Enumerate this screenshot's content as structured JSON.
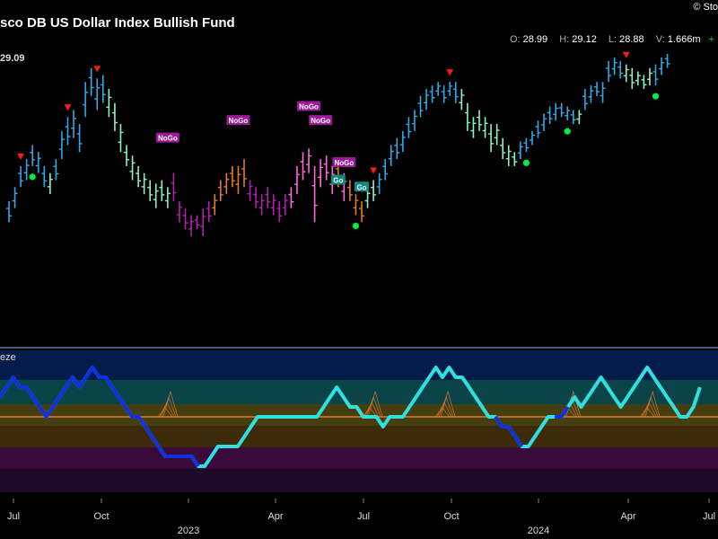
{
  "header": {
    "title": "sco DB US Dollar Index Bullish Fund",
    "copyright": "© Sto",
    "open_label": "O:",
    "open": "28.99",
    "high_label": "H:",
    "high": "29.12",
    "low_label": "L:",
    "low": "28.88",
    "vol_label": "V:",
    "vol": "1.666m",
    "change": "+"
  },
  "colors": {
    "strong_bull": "#2fa8e6",
    "weak_bull": "#8ff0c0",
    "weak_bear": "#e07a2a",
    "strong_bear": "#b21fb0",
    "neutral_bear": "#ff69d8",
    "signal_up": "#00ee44",
    "signal_down": "#ff1a1a",
    "oscillator_hi": "#2ee0e0",
    "oscillator_lo": "#1030e0",
    "zero_line": "#e07a2a"
  },
  "chart_data": [
    {
      "type": "bar",
      "price_label": "29.09",
      "x_ticks": [
        "Jul",
        "Oct",
        "2023",
        "Apr",
        "Jul",
        "Oct",
        "2024",
        "Apr",
        "Jul"
      ],
      "ylim": [
        25.3,
        29.4
      ],
      "bars": [
        {
          "x": 1,
          "lo": 27.0,
          "hi": 27.3,
          "c": "strong_bull"
        },
        {
          "x": 2,
          "lo": 27.2,
          "hi": 27.5,
          "c": "strong_bull"
        },
        {
          "x": 3,
          "lo": 27.5,
          "hi": 27.8,
          "c": "strong_bull"
        },
        {
          "x": 4,
          "lo": 27.6,
          "hi": 27.9,
          "c": "strong_bull"
        },
        {
          "x": 5,
          "lo": 27.8,
          "hi": 28.1,
          "c": "strong_bull"
        },
        {
          "x": 6,
          "lo": 27.7,
          "hi": 28.0,
          "c": "strong_bull"
        },
        {
          "x": 7,
          "lo": 27.5,
          "hi": 27.8,
          "c": "strong_bull"
        },
        {
          "x": 8,
          "lo": 27.4,
          "hi": 27.7,
          "c": "weak_bull"
        },
        {
          "x": 9,
          "lo": 27.6,
          "hi": 27.9,
          "c": "strong_bull"
        },
        {
          "x": 10,
          "lo": 27.9,
          "hi": 28.3,
          "c": "strong_bull"
        },
        {
          "x": 11,
          "lo": 28.1,
          "hi": 28.5,
          "c": "strong_bull"
        },
        {
          "x": 12,
          "lo": 28.2,
          "hi": 28.6,
          "c": "strong_bull"
        },
        {
          "x": 13,
          "lo": 28.0,
          "hi": 28.4,
          "c": "strong_bull"
        },
        {
          "x": 14,
          "lo": 28.5,
          "hi": 29.0,
          "c": "strong_bull"
        },
        {
          "x": 15,
          "lo": 28.8,
          "hi": 29.2,
          "c": "strong_bull"
        },
        {
          "x": 16,
          "lo": 28.6,
          "hi": 29.05,
          "c": "strong_bull"
        },
        {
          "x": 17,
          "lo": 28.7,
          "hi": 29.1,
          "c": "strong_bull"
        },
        {
          "x": 18,
          "lo": 28.5,
          "hi": 28.9,
          "c": "weak_bull"
        },
        {
          "x": 19,
          "lo": 28.3,
          "hi": 28.7,
          "c": "weak_bull"
        },
        {
          "x": 20,
          "lo": 28.0,
          "hi": 28.4,
          "c": "weak_bull"
        },
        {
          "x": 21,
          "lo": 27.8,
          "hi": 28.1,
          "c": "weak_bull"
        },
        {
          "x": 22,
          "lo": 27.6,
          "hi": 27.95,
          "c": "weak_bull"
        },
        {
          "x": 23,
          "lo": 27.5,
          "hi": 27.8,
          "c": "weak_bull"
        },
        {
          "x": 24,
          "lo": 27.4,
          "hi": 27.7,
          "c": "weak_bull"
        },
        {
          "x": 25,
          "lo": 27.3,
          "hi": 27.6,
          "c": "weak_bull"
        },
        {
          "x": 26,
          "lo": 27.2,
          "hi": 27.55,
          "c": "weak_bull"
        },
        {
          "x": 27,
          "lo": 27.3,
          "hi": 27.6,
          "c": "weak_bull"
        },
        {
          "x": 28,
          "lo": 27.2,
          "hi": 27.5,
          "c": "weak_bull"
        },
        {
          "x": 29,
          "lo": 27.3,
          "hi": 27.7,
          "c": "strong_bear"
        },
        {
          "x": 30,
          "lo": 27.0,
          "hi": 27.3,
          "c": "strong_bear"
        },
        {
          "x": 31,
          "lo": 26.9,
          "hi": 27.2,
          "c": "strong_bear"
        },
        {
          "x": 32,
          "lo": 26.8,
          "hi": 27.1,
          "c": "strong_bear"
        },
        {
          "x": 33,
          "lo": 26.9,
          "hi": 27.1,
          "c": "strong_bear"
        },
        {
          "x": 34,
          "lo": 26.8,
          "hi": 27.2,
          "c": "strong_bear"
        },
        {
          "x": 35,
          "lo": 27.0,
          "hi": 27.3,
          "c": "strong_bear"
        },
        {
          "x": 36,
          "lo": 27.1,
          "hi": 27.4,
          "c": "weak_bear"
        },
        {
          "x": 37,
          "lo": 27.3,
          "hi": 27.6,
          "c": "weak_bear"
        },
        {
          "x": 38,
          "lo": 27.4,
          "hi": 27.7,
          "c": "weak_bear"
        },
        {
          "x": 39,
          "lo": 27.5,
          "hi": 27.8,
          "c": "weak_bear"
        },
        {
          "x": 40,
          "lo": 27.4,
          "hi": 27.8,
          "c": "weak_bear"
        },
        {
          "x": 41,
          "lo": 27.5,
          "hi": 27.9,
          "c": "weak_bear"
        },
        {
          "x": 42,
          "lo": 27.3,
          "hi": 27.6,
          "c": "strong_bear"
        },
        {
          "x": 43,
          "lo": 27.2,
          "hi": 27.5,
          "c": "strong_bear"
        },
        {
          "x": 44,
          "lo": 27.1,
          "hi": 27.4,
          "c": "strong_bear"
        },
        {
          "x": 45,
          "lo": 27.2,
          "hi": 27.5,
          "c": "strong_bear"
        },
        {
          "x": 46,
          "lo": 27.1,
          "hi": 27.4,
          "c": "strong_bear"
        },
        {
          "x": 47,
          "lo": 27.0,
          "hi": 27.3,
          "c": "strong_bear"
        },
        {
          "x": 48,
          "lo": 27.1,
          "hi": 27.4,
          "c": "strong_bear"
        },
        {
          "x": 49,
          "lo": 27.2,
          "hi": 27.5,
          "c": "neutral_bear"
        },
        {
          "x": 50,
          "lo": 27.4,
          "hi": 27.8,
          "c": "neutral_bear"
        },
        {
          "x": 51,
          "lo": 27.6,
          "hi": 28.0,
          "c": "neutral_bear"
        },
        {
          "x": 52,
          "lo": 27.7,
          "hi": 28.05,
          "c": "neutral_bear"
        },
        {
          "x": 53,
          "lo": 27.0,
          "hi": 27.8,
          "c": "neutral_bear"
        },
        {
          "x": 54,
          "lo": 27.5,
          "hi": 27.9,
          "c": "neutral_bear"
        },
        {
          "x": 55,
          "lo": 27.6,
          "hi": 27.95,
          "c": "neutral_bear"
        },
        {
          "x": 56,
          "lo": 27.4,
          "hi": 27.8,
          "c": "neutral_bear"
        },
        {
          "x": 57,
          "lo": 27.5,
          "hi": 27.9,
          "c": "weak_bear"
        },
        {
          "x": 58,
          "lo": 27.3,
          "hi": 27.7,
          "c": "neutral_bear"
        },
        {
          "x": 59,
          "lo": 27.3,
          "hi": 27.6,
          "c": "weak_bear"
        },
        {
          "x": 60,
          "lo": 27.1,
          "hi": 27.4,
          "c": "weak_bear"
        },
        {
          "x": 61,
          "lo": 27.0,
          "hi": 27.3,
          "c": "weak_bear"
        },
        {
          "x": 62,
          "lo": 27.2,
          "hi": 27.5,
          "c": "weak_bull"
        },
        {
          "x": 63,
          "lo": 27.3,
          "hi": 27.6,
          "c": "weak_bull"
        },
        {
          "x": 64,
          "lo": 27.4,
          "hi": 27.7,
          "c": "strong_bull"
        },
        {
          "x": 65,
          "lo": 27.6,
          "hi": 27.9,
          "c": "strong_bull"
        },
        {
          "x": 66,
          "lo": 27.8,
          "hi": 28.1,
          "c": "strong_bull"
        },
        {
          "x": 67,
          "lo": 27.9,
          "hi": 28.2,
          "c": "strong_bull"
        },
        {
          "x": 68,
          "lo": 28.0,
          "hi": 28.3,
          "c": "strong_bull"
        },
        {
          "x": 69,
          "lo": 28.2,
          "hi": 28.5,
          "c": "strong_bull"
        },
        {
          "x": 70,
          "lo": 28.3,
          "hi": 28.6,
          "c": "strong_bull"
        },
        {
          "x": 71,
          "lo": 28.5,
          "hi": 28.8,
          "c": "strong_bull"
        },
        {
          "x": 72,
          "lo": 28.6,
          "hi": 28.9,
          "c": "strong_bull"
        },
        {
          "x": 73,
          "lo": 28.7,
          "hi": 28.95,
          "c": "strong_bull"
        },
        {
          "x": 74,
          "lo": 28.8,
          "hi": 29.0,
          "c": "strong_bull"
        },
        {
          "x": 75,
          "lo": 28.7,
          "hi": 28.95,
          "c": "strong_bull"
        },
        {
          "x": 76,
          "lo": 28.8,
          "hi": 29.0,
          "c": "strong_bull"
        },
        {
          "x": 77,
          "lo": 28.7,
          "hi": 29.0,
          "c": "strong_bull"
        },
        {
          "x": 78,
          "lo": 28.6,
          "hi": 28.9,
          "c": "weak_bull"
        },
        {
          "x": 79,
          "lo": 28.3,
          "hi": 28.7,
          "c": "weak_bull"
        },
        {
          "x": 80,
          "lo": 28.2,
          "hi": 28.5,
          "c": "weak_bull"
        },
        {
          "x": 81,
          "lo": 28.3,
          "hi": 28.6,
          "c": "weak_bull"
        },
        {
          "x": 82,
          "lo": 28.2,
          "hi": 28.5,
          "c": "weak_bull"
        },
        {
          "x": 83,
          "lo": 28.0,
          "hi": 28.4,
          "c": "weak_bull"
        },
        {
          "x": 84,
          "lo": 28.1,
          "hi": 28.4,
          "c": "weak_bull"
        },
        {
          "x": 85,
          "lo": 27.9,
          "hi": 28.2,
          "c": "weak_bull"
        },
        {
          "x": 86,
          "lo": 27.8,
          "hi": 28.1,
          "c": "weak_bull"
        },
        {
          "x": 87,
          "lo": 27.8,
          "hi": 28.0,
          "c": "weak_bull"
        },
        {
          "x": 88,
          "lo": 27.9,
          "hi": 28.15,
          "c": "strong_bull"
        },
        {
          "x": 89,
          "lo": 28.0,
          "hi": 28.2,
          "c": "strong_bull"
        },
        {
          "x": 90,
          "lo": 28.1,
          "hi": 28.3,
          "c": "strong_bull"
        },
        {
          "x": 91,
          "lo": 28.2,
          "hi": 28.45,
          "c": "strong_bull"
        },
        {
          "x": 92,
          "lo": 28.3,
          "hi": 28.55,
          "c": "strong_bull"
        },
        {
          "x": 93,
          "lo": 28.4,
          "hi": 28.65,
          "c": "strong_bull"
        },
        {
          "x": 94,
          "lo": 28.45,
          "hi": 28.7,
          "c": "strong_bull"
        },
        {
          "x": 95,
          "lo": 28.5,
          "hi": 28.7,
          "c": "strong_bull"
        },
        {
          "x": 96,
          "lo": 28.45,
          "hi": 28.65,
          "c": "strong_bull"
        },
        {
          "x": 97,
          "lo": 28.4,
          "hi": 28.6,
          "c": "strong_bull"
        },
        {
          "x": 98,
          "lo": 28.4,
          "hi": 28.6,
          "c": "weak_bull"
        },
        {
          "x": 99,
          "lo": 28.6,
          "hi": 28.9,
          "c": "strong_bull"
        },
        {
          "x": 100,
          "lo": 28.7,
          "hi": 28.95,
          "c": "strong_bull"
        },
        {
          "x": 101,
          "lo": 28.8,
          "hi": 29.0,
          "c": "strong_bull"
        },
        {
          "x": 102,
          "lo": 28.7,
          "hi": 29.0,
          "c": "strong_bull"
        },
        {
          "x": 103,
          "lo": 29.0,
          "hi": 29.3,
          "c": "strong_bull"
        },
        {
          "x": 104,
          "lo": 29.1,
          "hi": 29.35,
          "c": "strong_bull"
        },
        {
          "x": 105,
          "lo": 29.05,
          "hi": 29.3,
          "c": "strong_bull"
        },
        {
          "x": 106,
          "lo": 29.0,
          "hi": 29.25,
          "c": "weak_bull"
        },
        {
          "x": 107,
          "lo": 28.9,
          "hi": 29.2,
          "c": "weak_bull"
        },
        {
          "x": 108,
          "lo": 28.95,
          "hi": 29.15,
          "c": "weak_bull"
        },
        {
          "x": 109,
          "lo": 28.9,
          "hi": 29.1,
          "c": "weak_bull"
        },
        {
          "x": 110,
          "lo": 28.95,
          "hi": 29.2,
          "c": "weak_bull"
        },
        {
          "x": 111,
          "lo": 28.95,
          "hi": 29.25,
          "c": "strong_bull"
        },
        {
          "x": 112,
          "lo": 29.1,
          "hi": 29.35,
          "c": "strong_bull"
        },
        {
          "x": 113,
          "lo": 29.2,
          "hi": 29.4,
          "c": "strong_bull"
        }
      ],
      "signals_down": [
        3,
        11,
        16,
        63,
        76,
        106
      ],
      "signals_up": [
        5,
        60,
        89,
        96,
        111
      ],
      "labels": [
        {
          "x": 28,
          "y": 28.2,
          "text": "NoGo",
          "kind": "nogo"
        },
        {
          "x": 40,
          "y": 28.45,
          "text": "NoGo",
          "kind": "nogo"
        },
        {
          "x": 52,
          "y": 28.65,
          "text": "NoGo",
          "kind": "nogo"
        },
        {
          "x": 54,
          "y": 28.45,
          "text": "NoGo",
          "kind": "nogo"
        },
        {
          "x": 58,
          "y": 27.85,
          "text": "NoGo",
          "kind": "nogo"
        },
        {
          "x": 57,
          "y": 27.6,
          "text": "Go",
          "kind": "go"
        },
        {
          "x": 61,
          "y": 27.5,
          "text": "Go",
          "kind": "go"
        }
      ]
    },
    {
      "type": "line",
      "title": "eze",
      "ylim": [
        -6,
        6
      ],
      "zero": 0,
      "values": [
        2,
        3,
        4,
        3,
        3,
        2,
        1,
        0,
        1,
        2,
        3,
        4,
        3,
        4,
        5,
        4,
        4,
        3,
        2,
        1,
        0,
        0,
        -1,
        -2,
        -3,
        -4,
        -4,
        -4,
        -4,
        -4,
        -5,
        -5,
        -4,
        -3,
        -3,
        -3,
        -3,
        -2,
        -1,
        0,
        0,
        0,
        0,
        0,
        0,
        0,
        0,
        0,
        0,
        1,
        2,
        3,
        2,
        1,
        1,
        0,
        0,
        0,
        -1,
        0,
        0,
        0,
        1,
        2,
        3,
        4,
        5,
        4,
        5,
        4,
        4,
        3,
        2,
        1,
        0,
        0,
        -1,
        -1,
        -2,
        -3,
        -3,
        -2,
        -1,
        0,
        0,
        0,
        1,
        2,
        1,
        2,
        3,
        4,
        3,
        2,
        1,
        2,
        3,
        4,
        5,
        4,
        3,
        2,
        1,
        0,
        0,
        1,
        3
      ],
      "blue_segments": [
        [
          0,
          30
        ],
        [
          75,
          79
        ],
        [
          84,
          86
        ]
      ]
    }
  ]
}
